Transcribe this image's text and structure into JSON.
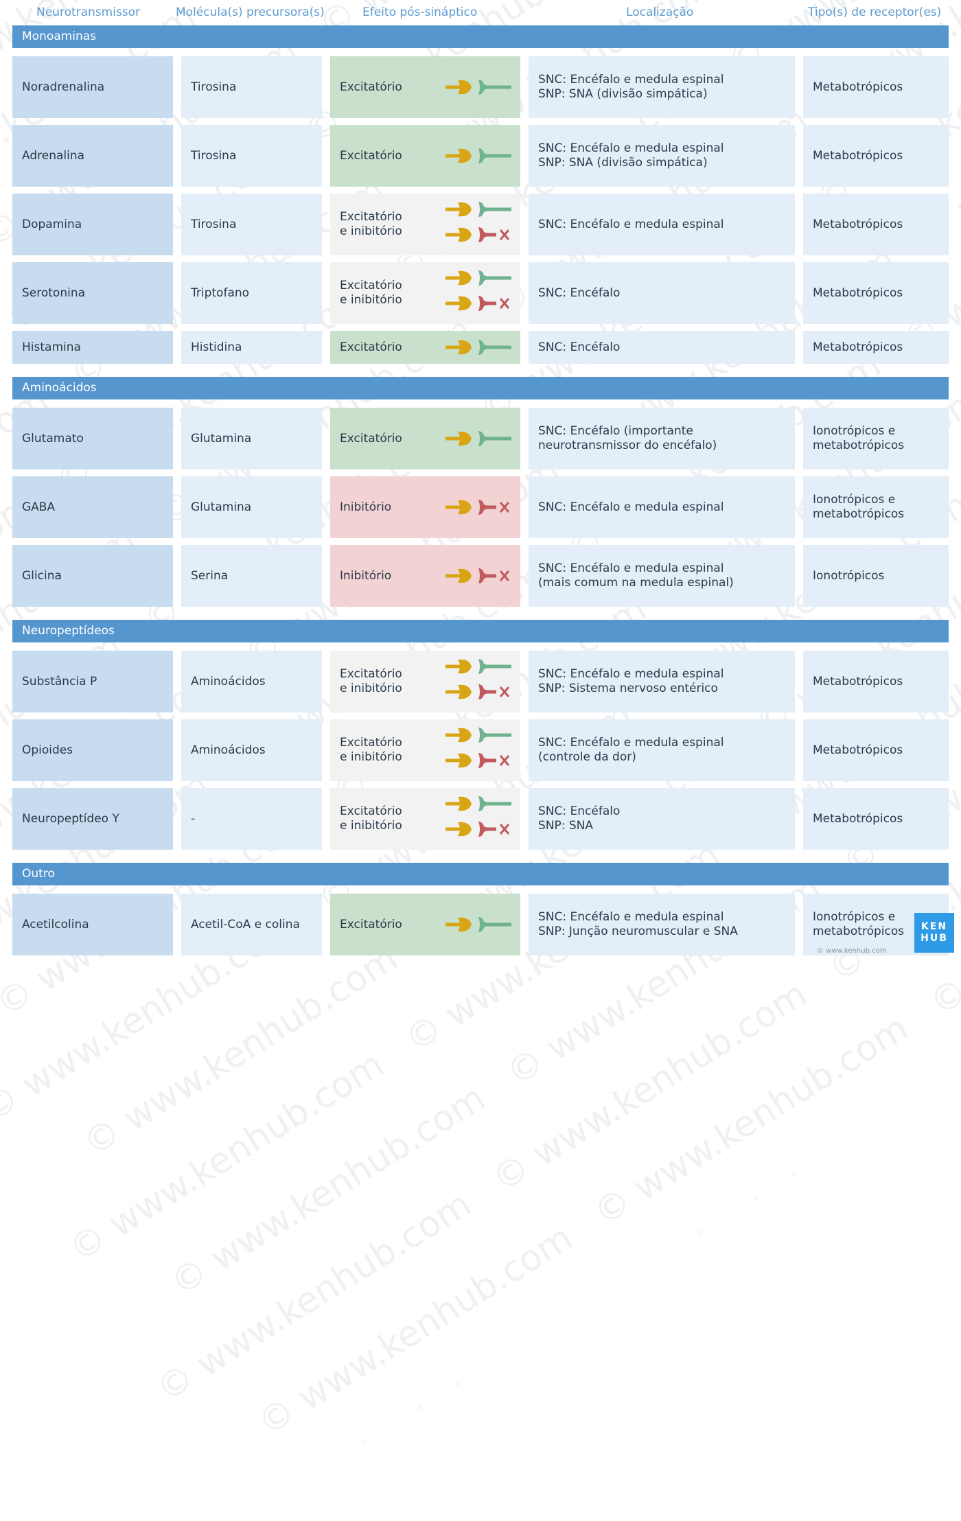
{
  "headers": [
    "Neurotransmissor",
    "Molécula(s) precursora(s)",
    "Efeito pós-sináptico",
    "Localização",
    "Tipo(s) de receptor(es)"
  ],
  "sections": [
    {
      "title": "Monoaminas",
      "rows": [
        {
          "name": "Noradrenalina",
          "precursor": "Tirosina",
          "effect": "Excitatório",
          "effect_type": "excitatory",
          "location": "SNC: Encéfalo e medula espinal\nSNP: SNA (divisão simpática)",
          "receptor": "Metabotrópicos"
        },
        {
          "name": "Adrenalina",
          "precursor": "Tirosina",
          "effect": "Excitatório",
          "effect_type": "excitatory",
          "location": "SNC: Encéfalo e medula espinal\nSNP: SNA (divisão simpática)",
          "receptor": "Metabotrópicos"
        },
        {
          "name": "Dopamina",
          "precursor": "Tirosina",
          "effect": "Excitatório\ne inibitório",
          "effect_type": "both",
          "location": "SNC: Encéfalo e medula espinal",
          "receptor": "Metabotrópicos"
        },
        {
          "name": "Serotonina",
          "precursor": "Triptofano",
          "effect": "Excitatório\ne inibitório",
          "effect_type": "both",
          "location": "SNC: Encéfalo",
          "receptor": "Metabotrópicos"
        },
        {
          "name": "Histamina",
          "precursor": "Histidina",
          "effect": "Excitatório",
          "effect_type": "excitatory",
          "location": "SNC: Encéfalo",
          "receptor": "Metabotrópicos"
        }
      ]
    },
    {
      "title": "Aminoácidos",
      "rows": [
        {
          "name": "Glutamato",
          "precursor": "Glutamina",
          "effect": "Excitatório",
          "effect_type": "excitatory",
          "location": "SNC: Encéfalo (importante\nneurotransmissor do encéfalo)",
          "receptor": "Ionotrópicos e\nmetabotrópicos"
        },
        {
          "name": "GABA",
          "precursor": "Glutamina",
          "effect": "Inibitório",
          "effect_type": "inhibitory",
          "location": "SNC: Encéfalo e medula espinal",
          "receptor": "Ionotrópicos e\nmetabotrópicos"
        },
        {
          "name": "Glicina",
          "precursor": "Serina",
          "effect": "Inibitório",
          "effect_type": "inhibitory",
          "location": "SNC: Encéfalo e medula espinal\n(mais comum na medula espinal)",
          "receptor": "Ionotrópicos"
        }
      ]
    },
    {
      "title": "Neuropeptídeos",
      "rows": [
        {
          "name": "Substância P",
          "precursor": "Aminoácidos",
          "effect": "Excitatório\ne inibitório",
          "effect_type": "both",
          "location": "SNC: Encéfalo e medula espinal\nSNP: Sistema nervoso entérico",
          "receptor": "Metabotrópicos"
        },
        {
          "name": "Opioides",
          "precursor": "Aminoácidos",
          "effect": "Excitatório\ne inibitório",
          "effect_type": "both",
          "location": "SNC: Encéfalo e medula espinal\n(controle da dor)",
          "receptor": "Metabotrópicos"
        },
        {
          "name": "Neuropeptídeo Y",
          "precursor": "-",
          "effect": "Excitatório\ne inibitório",
          "effect_type": "both",
          "location": "SNC: Encéfalo\nSNP: SNA",
          "receptor": "Metabotrópicos"
        }
      ]
    },
    {
      "title": "Outro",
      "rows": [
        {
          "name": "Acetilcolina",
          "precursor": "Acetil-CoA e colina",
          "effect": "Excitatório",
          "effect_type": "excitatory",
          "location": "SNC: Encéfalo e medula espinal\nSNP: Junção neuromuscular e SNA",
          "receptor": "Ionotrópicos e\nmetabotrópicos"
        }
      ]
    }
  ],
  "watermark": "© www.kenhub.com",
  "logo": {
    "line1": "KEN",
    "line2": "HUB"
  },
  "copyright": "© www.kenhub.com",
  "colors": {
    "section": "#5596cf",
    "excitatory": "#c9e0cc",
    "inhibitory": "#f3d2d3",
    "both": "#f2f2f2",
    "terminal": "#d9a514",
    "receptor_exc": "#6fb28f",
    "receptor_inh": "#c05a5e"
  }
}
